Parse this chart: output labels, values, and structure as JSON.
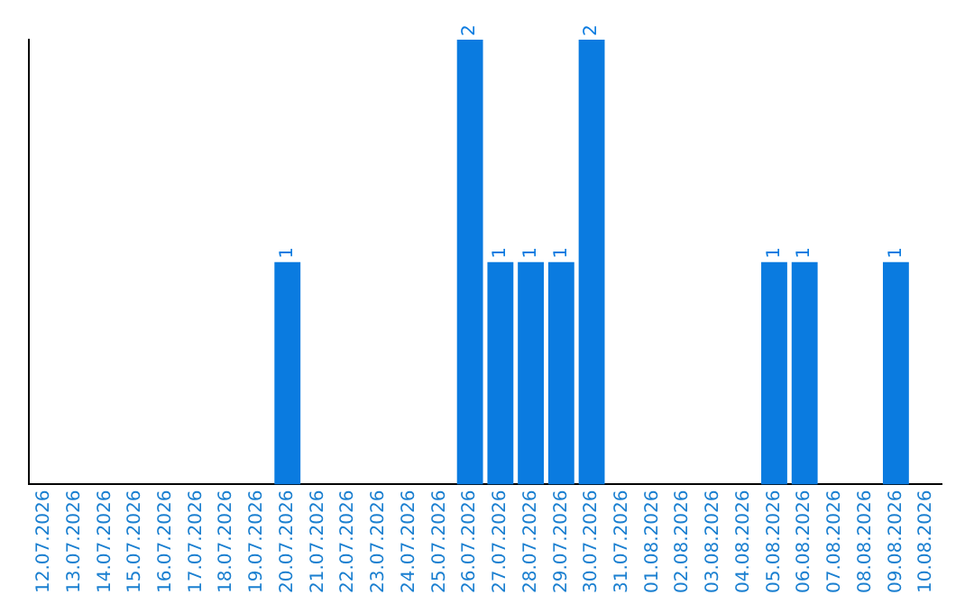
{
  "chart_data": {
    "type": "bar",
    "categories": [
      "12.07.2026",
      "13.07.2026",
      "14.07.2026",
      "15.07.2026",
      "16.07.2026",
      "17.07.2026",
      "18.07.2026",
      "19.07.2026",
      "20.07.2026",
      "21.07.2026",
      "22.07.2026",
      "23.07.2026",
      "24.07.2026",
      "25.07.2026",
      "26.07.2026",
      "27.07.2026",
      "28.07.2026",
      "29.07.2026",
      "30.07.2026",
      "31.07.2026",
      "01.08.2026",
      "02.08.2026",
      "03.08.2026",
      "04.08.2026",
      "05.08.2026",
      "06.08.2026",
      "07.08.2026",
      "08.08.2026",
      "09.08.2026",
      "10.08.2026"
    ],
    "values": [
      0,
      0,
      0,
      0,
      0,
      0,
      0,
      0,
      1,
      0,
      0,
      0,
      0,
      0,
      2,
      1,
      1,
      1,
      2,
      0,
      0,
      0,
      0,
      0,
      1,
      1,
      0,
      0,
      1,
      0
    ],
    "value_labels": [
      null,
      null,
      null,
      null,
      null,
      null,
      null,
      null,
      "1",
      null,
      null,
      null,
      null,
      null,
      "2",
      "1",
      "1",
      "1",
      "2",
      null,
      null,
      null,
      null,
      null,
      "1",
      "1",
      null,
      null,
      "1",
      null
    ],
    "color": "#0a7be0",
    "grid": false,
    "legend": false,
    "tick_labels": "x"
  }
}
